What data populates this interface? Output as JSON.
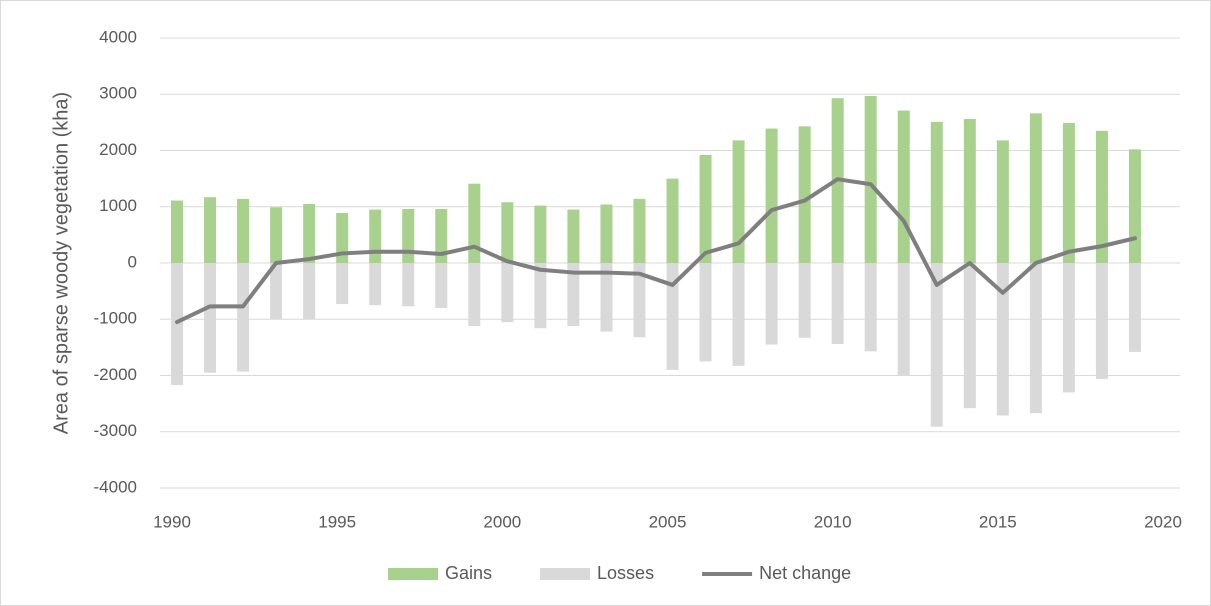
{
  "chart_data": {
    "type": "bar",
    "y_label": "Area of sparse woody vegetation (kha)",
    "x": [
      1990,
      1991,
      1992,
      1993,
      1994,
      1995,
      1996,
      1997,
      1998,
      1999,
      2000,
      2001,
      2002,
      2003,
      2004,
      2005,
      2006,
      2007,
      2008,
      2009,
      2010,
      2011,
      2012,
      2013,
      2014,
      2015,
      2016,
      2017,
      2018,
      2019
    ],
    "series": [
      {
        "name": "Gains",
        "type": "bar",
        "color": "#a9d18e",
        "values": [
          1110,
          1170,
          1140,
          990,
          1050,
          890,
          950,
          960,
          960,
          1410,
          1080,
          1020,
          950,
          1040,
          1140,
          1500,
          1920,
          2180,
          2390,
          2430,
          2930,
          2970,
          2710,
          2510,
          2560,
          2180,
          2660,
          2490,
          2350,
          2020
        ]
      },
      {
        "name": "Losses",
        "type": "bar",
        "color": "#d9d9d9",
        "values": [
          -2170,
          -1950,
          -1930,
          -1000,
          -1000,
          -730,
          -750,
          -770,
          -800,
          -1120,
          -1050,
          -1160,
          -1120,
          -1220,
          -1320,
          -1900,
          -1750,
          -1830,
          -1450,
          -1330,
          -1440,
          -1570,
          -1990,
          -2910,
          -2580,
          -2710,
          -2670,
          -2300,
          -2060,
          -1580
        ]
      },
      {
        "name": "Net change",
        "type": "line",
        "color": "#7f7f7f",
        "values": [
          -1050,
          -770,
          -770,
          0,
          70,
          170,
          200,
          200,
          160,
          290,
          30,
          -120,
          -170,
          -170,
          -190,
          -390,
          180,
          350,
          940,
          1110,
          1490,
          1400,
          750,
          -390,
          0,
          -530,
          0,
          200,
          300,
          440
        ]
      }
    ],
    "xlim": [
      1990,
      2020
    ],
    "xticks": [
      1990,
      1995,
      2000,
      2005,
      2010,
      2015,
      2020
    ],
    "ylim": [
      -4000,
      4000
    ],
    "yticks": [
      -4000,
      -3000,
      -2000,
      -1000,
      0,
      1000,
      2000,
      3000,
      4000
    ],
    "grid": true
  }
}
